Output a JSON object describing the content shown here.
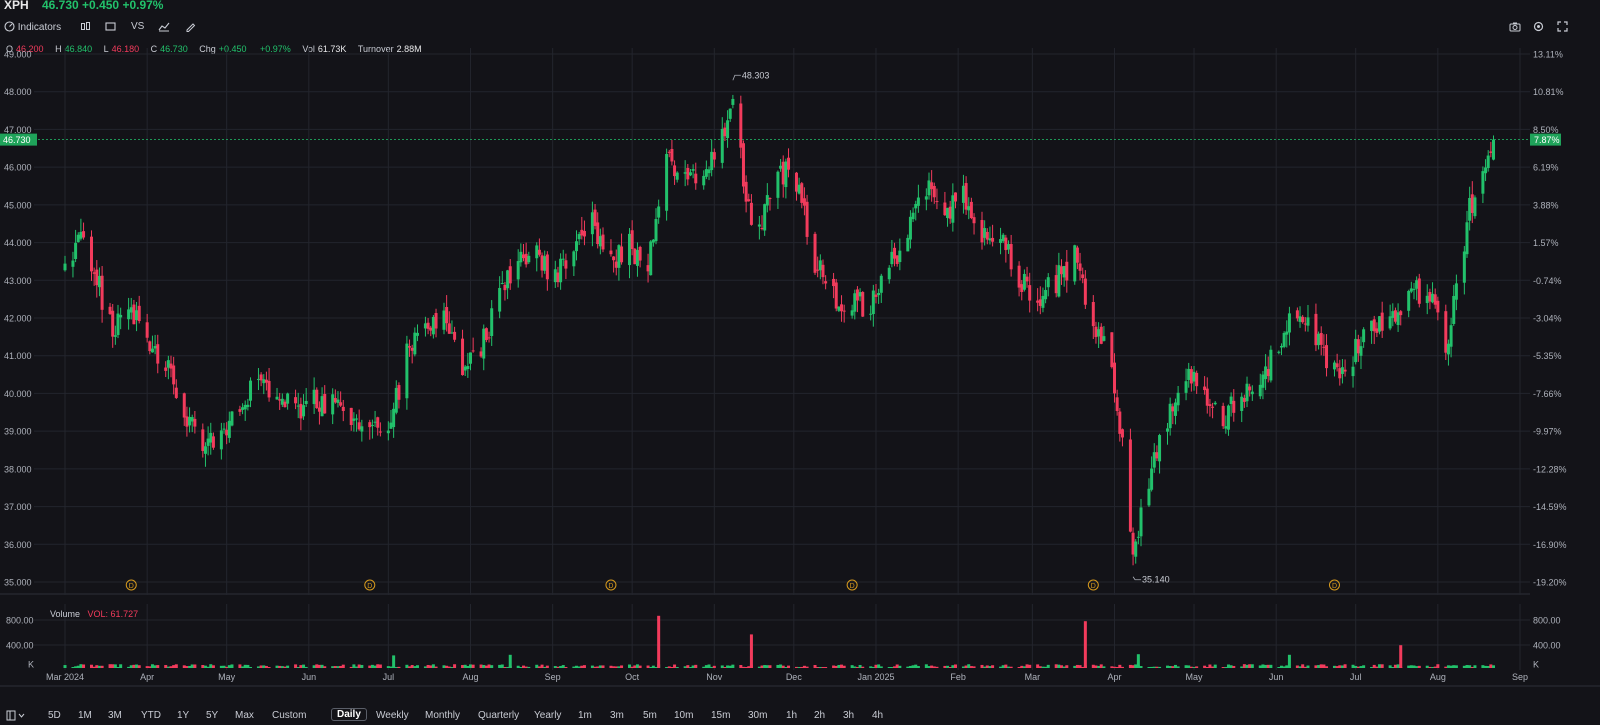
{
  "header": {
    "symbol": "XPH",
    "last_price": "46.730",
    "change": "+0.450",
    "change_pct": "+0.97%"
  },
  "toolbar": {
    "indicators_label": "Indicators",
    "compare_label": "VS"
  },
  "ohlc_legend": {
    "o_label": "O",
    "o_value": "46.200",
    "h_label": "H",
    "h_value": "46.840",
    "l_label": "L",
    "l_value": "46.180",
    "c_label": "C",
    "c_value": "46.730",
    "chg_label": "Chg",
    "chg_value": "+0.450",
    "chg_pct": "+0.97%",
    "vol_label": "Vol",
    "vol_value": "61.73K",
    "turnover_label": "Turnover",
    "turnover_value": "2.88M"
  },
  "volume_legend": {
    "label": "Volume",
    "value": "VOL: 61.727"
  },
  "bottom_bar": {
    "ranges": [
      "5D",
      "1M",
      "3M",
      "YTD",
      "1Y",
      "5Y",
      "Max",
      "Custom"
    ],
    "intervals": [
      "Daily",
      "Weekly",
      "Monthly",
      "Quarterly",
      "Yearly",
      "1m",
      "3m",
      "5m",
      "10m",
      "15m",
      "30m",
      "1h",
      "2h",
      "3h",
      "4h"
    ],
    "active_interval": "Daily"
  },
  "colors": {
    "up": "#22c16b",
    "down": "#f23b5c",
    "background": "#131318",
    "grid": "#23252d"
  },
  "chart_data": {
    "type": "candlestick",
    "title": "",
    "y_axis_left": [
      "49.000",
      "48.000",
      "47.000",
      "46.000",
      "45.000",
      "44.000",
      "43.000",
      "42.000",
      "41.000",
      "40.000",
      "39.000",
      "38.000",
      "37.000",
      "36.000",
      "35.000"
    ],
    "y_axis_right": [
      "13.11%",
      "10.81%",
      "8.50%",
      "6.19%",
      "3.88%",
      "1.57%",
      "-0.74%",
      "-3.04%",
      "-5.35%",
      "-7.66%",
      "-9.97%",
      "-12.28%",
      "-14.59%",
      "-16.90%",
      "-19.20%"
    ],
    "ylim": [
      35,
      49
    ],
    "x_labels": [
      "Mar 2024",
      "Apr",
      "May",
      "Jun",
      "Jul",
      "Aug",
      "Sep",
      "Oct",
      "Nov",
      "Dec",
      "Jan 2025",
      "Feb",
      "Mar",
      "Apr",
      "May",
      "Jun",
      "Jul",
      "Aug",
      "Sep"
    ],
    "price_path": [
      [
        "2024-03-01",
        43.3
      ],
      [
        "2024-03-07",
        44.4
      ],
      [
        "2024-03-13",
        43.0
      ],
      [
        "2024-03-19",
        41.6
      ],
      [
        "2024-03-25",
        42.3
      ],
      [
        "2024-04-01",
        41.4
      ],
      [
        "2024-04-08",
        40.8
      ],
      [
        "2024-04-15",
        39.5
      ],
      [
        "2024-04-22",
        38.6
      ],
      [
        "2024-04-29",
        38.9
      ],
      [
        "2024-05-06",
        39.8
      ],
      [
        "2024-05-13",
        40.3
      ],
      [
        "2024-05-20",
        40.2
      ],
      [
        "2024-05-27",
        39.6
      ],
      [
        "2024-06-03",
        39.9
      ],
      [
        "2024-06-10",
        39.7
      ],
      [
        "2024-06-17",
        39.2
      ],
      [
        "2024-06-24",
        39.3
      ],
      [
        "2024-07-01",
        39.0
      ],
      [
        "2024-07-08",
        41.0
      ],
      [
        "2024-07-15",
        41.8
      ],
      [
        "2024-07-22",
        42.1
      ],
      [
        "2024-07-29",
        40.4
      ],
      [
        "2024-08-05",
        41.2
      ],
      [
        "2024-08-12",
        42.5
      ],
      [
        "2024-08-19",
        43.5
      ],
      [
        "2024-08-26",
        43.8
      ],
      [
        "2024-09-02",
        43.0
      ],
      [
        "2024-09-09",
        43.8
      ],
      [
        "2024-09-16",
        44.5
      ],
      [
        "2024-09-23",
        43.5
      ],
      [
        "2024-09-30",
        43.9
      ],
      [
        "2024-10-07",
        43.4
      ],
      [
        "2024-10-14",
        46.3
      ],
      [
        "2024-10-21",
        45.8
      ],
      [
        "2024-10-28",
        45.5
      ],
      [
        "2024-11-04",
        46.8
      ],
      [
        "2024-11-08",
        48.0
      ],
      [
        "2024-11-13",
        45.0
      ],
      [
        "2024-11-18",
        44.4
      ],
      [
        "2024-11-25",
        46.0
      ],
      [
        "2024-12-02",
        45.6
      ],
      [
        "2024-12-09",
        43.5
      ],
      [
        "2024-12-16",
        42.6
      ],
      [
        "2024-12-23",
        42.3
      ],
      [
        "2024-12-30",
        42.4
      ],
      [
        "2025-01-06",
        43.3
      ],
      [
        "2025-01-13",
        44.4
      ],
      [
        "2025-01-20",
        45.4
      ],
      [
        "2025-01-27",
        44.7
      ],
      [
        "2025-02-03",
        45.3
      ],
      [
        "2025-02-10",
        44.2
      ],
      [
        "2025-02-17",
        44.0
      ],
      [
        "2025-02-24",
        43.1
      ],
      [
        "2025-03-03",
        42.4
      ],
      [
        "2025-03-10",
        43.0
      ],
      [
        "2025-03-17",
        43.6
      ],
      [
        "2025-03-24",
        42.0
      ],
      [
        "2025-03-31",
        40.9
      ],
      [
        "2025-04-04",
        38.6
      ],
      [
        "2025-04-08",
        35.7
      ],
      [
        "2025-04-14",
        37.8
      ],
      [
        "2025-04-21",
        39.4
      ],
      [
        "2025-04-28",
        40.6
      ],
      [
        "2025-05-05",
        40.0
      ],
      [
        "2025-05-12",
        39.4
      ],
      [
        "2025-05-19",
        39.9
      ],
      [
        "2025-05-26",
        40.3
      ],
      [
        "2025-06-02",
        41.3
      ],
      [
        "2025-06-09",
        42.2
      ],
      [
        "2025-06-16",
        41.4
      ],
      [
        "2025-06-23",
        40.6
      ],
      [
        "2025-06-30",
        41.0
      ],
      [
        "2025-07-07",
        41.8
      ],
      [
        "2025-07-14",
        42.1
      ],
      [
        "2025-07-21",
        42.6
      ],
      [
        "2025-07-28",
        42.8
      ],
      [
        "2025-08-04",
        41.3
      ],
      [
        "2025-08-08",
        42.7
      ],
      [
        "2025-08-13",
        44.9
      ],
      [
        "2025-08-18",
        46.0
      ],
      [
        "2025-08-22",
        46.73
      ]
    ],
    "annotations": [
      {
        "text": "48.303",
        "date": "2024-11-08",
        "value": 48.303
      },
      {
        "text": "35.140",
        "date": "2025-04-08",
        "value": 35.14
      }
    ],
    "current_price_label": "46.730",
    "current_pct_label": "7.87%",
    "dividend_marker": "D",
    "volume": {
      "y_axis": [
        "800.00",
        "400.00",
        "K"
      ],
      "spikes": [
        {
          "date": "2024-10-11",
          "value": 870
        },
        {
          "date": "2024-11-15",
          "value": 560
        },
        {
          "date": "2025-03-21",
          "value": 780
        },
        {
          "date": "2025-07-18",
          "value": 380
        },
        {
          "date": "2024-07-03",
          "value": 210
        },
        {
          "date": "2024-08-16",
          "value": 220
        },
        {
          "date": "2025-04-10",
          "value": 230
        },
        {
          "date": "2025-06-06",
          "value": 220
        }
      ],
      "typical_value": 40
    },
    "grid": true
  }
}
